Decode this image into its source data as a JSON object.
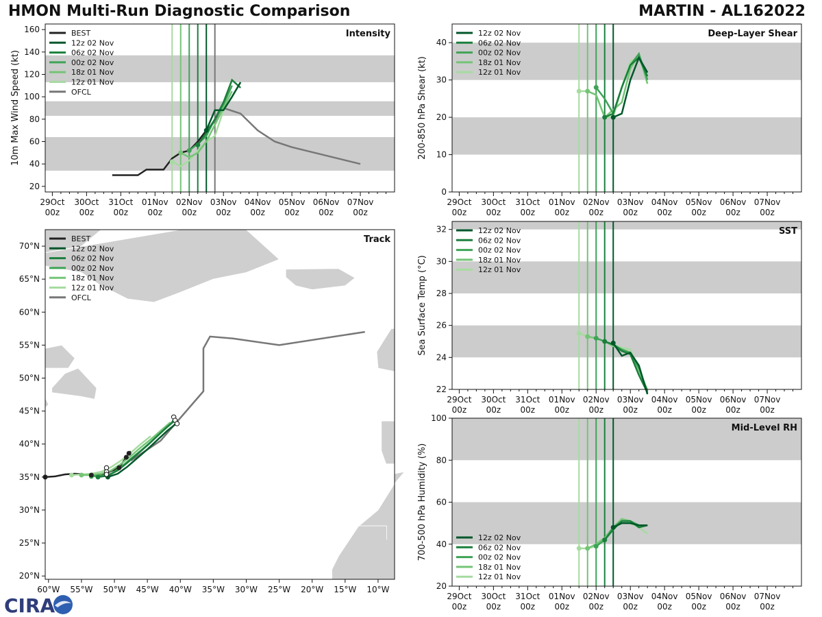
{
  "header": {
    "title": "HMON Multi-Run Diagnostic Comparison",
    "storm": "MARTIN - AL162022"
  },
  "colors": {
    "best": "#222222",
    "ofcl": "#777777",
    "band": "#cccccc",
    "runs": {
      "12z 02 Nov": "#00572a",
      "06z 02 Nov": "#1b7f3c",
      "00z 02 Nov": "#3ea356",
      "18z 01 Nov": "#74c476",
      "12z 01 Nov": "#a6dba0"
    }
  },
  "logo": {
    "text": "CIRA"
  },
  "time_axis": {
    "tick_labels": [
      [
        "29Oct",
        "00z"
      ],
      [
        "30Oct",
        "00z"
      ],
      [
        "31Oct",
        "00z"
      ],
      [
        "01Nov",
        "00z"
      ],
      [
        "02Nov",
        "00z"
      ],
      [
        "03Nov",
        "00z"
      ],
      [
        "04Nov",
        "00z"
      ],
      [
        "05Nov",
        "00z"
      ],
      [
        "06Nov",
        "00z"
      ],
      [
        "07Nov",
        "00z"
      ]
    ]
  },
  "chart_data": [
    {
      "id": "intensity",
      "type": "line",
      "title": "Intensity",
      "ylabel": "10m Max Wind Speed (kt)",
      "x_unit": "hours since 29Oct 00z",
      "xlim": [
        -5,
        240
      ],
      "ylim": [
        15,
        165
      ],
      "yticks": [
        20,
        40,
        60,
        80,
        100,
        120,
        140,
        160
      ],
      "bands": [
        [
          34,
          64
        ],
        [
          83,
          96
        ],
        [
          113,
          137
        ]
      ],
      "init_lines": [
        {
          "x": 84,
          "run": "12z 01 Nov"
        },
        {
          "x": 90,
          "run": "18z 01 Nov"
        },
        {
          "x": 96,
          "run": "00z 02 Nov"
        },
        {
          "x": 102,
          "run": "06z 02 Nov"
        },
        {
          "x": 108,
          "run": "12z 02 Nov"
        },
        {
          "x": 114,
          "run": "OFCL"
        }
      ],
      "legend": [
        "BEST",
        "12z 02 Nov",
        "06z 02 Nov",
        "00z 02 Nov",
        "18z 01 Nov",
        "12z 01 Nov",
        "OFCL"
      ],
      "series": [
        {
          "name": "BEST",
          "x": [
            42,
            60,
            66,
            78,
            84,
            90,
            96,
            102,
            108
          ],
          "y": [
            30,
            30,
            35,
            35,
            45,
            50,
            52,
            60,
            70
          ]
        },
        {
          "name": "OFCL",
          "x": [
            108,
            114,
            120,
            132,
            144,
            156,
            168,
            216
          ],
          "y": [
            70,
            78,
            90,
            85,
            70,
            60,
            55,
            40
          ]
        },
        {
          "name": "12z 01 Nov",
          "x": [
            84,
            90,
            96,
            102,
            108,
            114,
            120,
            126
          ],
          "y": [
            42,
            38,
            43,
            52,
            60,
            65,
            88,
            100
          ]
        },
        {
          "name": "18z 01 Nov",
          "x": [
            90,
            96,
            102,
            108,
            114,
            120,
            126
          ],
          "y": [
            50,
            46,
            50,
            60,
            75,
            90,
            105
          ]
        },
        {
          "name": "00z 02 Nov",
          "x": [
            96,
            102,
            108,
            114,
            120,
            126
          ],
          "y": [
            52,
            58,
            65,
            80,
            93,
            110
          ]
        },
        {
          "name": "06z 02 Nov",
          "x": [
            102,
            108,
            114,
            120,
            126,
            132
          ],
          "y": [
            57,
            68,
            80,
            95,
            115,
            108
          ]
        },
        {
          "name": "12z 02 Nov",
          "x": [
            108,
            114,
            120,
            126,
            132
          ],
          "y": [
            70,
            88,
            88,
            100,
            113
          ]
        }
      ]
    },
    {
      "id": "shear",
      "type": "line",
      "title": "Deep-Layer Shear",
      "ylabel": "200-850 hPa Shear (kt)",
      "x_unit": "hours since 29Oct 00z",
      "xlim": [
        -5,
        240
      ],
      "ylim": [
        0,
        45
      ],
      "yticks": [
        0,
        10,
        20,
        30,
        40
      ],
      "bands": [
        [
          10,
          20
        ],
        [
          30,
          40
        ]
      ],
      "init_lines": [
        {
          "x": 84,
          "run": "12z 01 Nov"
        },
        {
          "x": 90,
          "run": "18z 01 Nov"
        },
        {
          "x": 96,
          "run": "00z 02 Nov"
        },
        {
          "x": 102,
          "run": "06z 02 Nov"
        },
        {
          "x": 108,
          "run": "12z 02 Nov"
        }
      ],
      "legend": [
        "12z 02 Nov",
        "06z 02 Nov",
        "00z 02 Nov",
        "18z 01 Nov",
        "12z 01 Nov"
      ],
      "series": [
        {
          "name": "12z 01 Nov",
          "x": [
            84,
            90,
            96,
            102,
            108,
            114,
            120,
            126,
            132
          ],
          "y": [
            27,
            27,
            26,
            20,
            20,
            28,
            35,
            36,
            30
          ]
        },
        {
          "name": "18z 01 Nov",
          "x": [
            90,
            96,
            102,
            108,
            114,
            120,
            126,
            132
          ],
          "y": [
            27,
            26,
            20,
            22,
            24,
            33,
            37,
            29
          ]
        },
        {
          "name": "00z 02 Nov",
          "x": [
            96,
            102,
            108,
            114,
            120,
            126,
            132
          ],
          "y": [
            28,
            25,
            21,
            28,
            34,
            37,
            30
          ]
        },
        {
          "name": "06z 02 Nov",
          "x": [
            102,
            108,
            114,
            120,
            126,
            132
          ],
          "y": [
            20,
            21,
            28,
            34,
            36,
            31
          ]
        },
        {
          "name": "12z 02 Nov",
          "x": [
            108,
            114,
            120,
            126,
            132
          ],
          "y": [
            20,
            21,
            30,
            36,
            32
          ]
        }
      ]
    },
    {
      "id": "sst",
      "type": "line",
      "title": "SST",
      "ylabel": "Sea Surface Temp (°C)",
      "x_unit": "hours since 29Oct 00z",
      "xlim": [
        -5,
        240
      ],
      "ylim": [
        22,
        32.5
      ],
      "yticks": [
        22,
        24,
        26,
        28,
        30,
        32
      ],
      "bands": [
        [
          24,
          26
        ],
        [
          28,
          30
        ],
        [
          32,
          32.5
        ]
      ],
      "init_lines": [
        {
          "x": 84,
          "run": "12z 01 Nov"
        },
        {
          "x": 90,
          "run": "18z 01 Nov"
        },
        {
          "x": 96,
          "run": "00z 02 Nov"
        },
        {
          "x": 102,
          "run": "06z 02 Nov"
        },
        {
          "x": 108,
          "run": "12z 02 Nov"
        }
      ],
      "legend": [
        "12z 02 Nov",
        "06z 02 Nov",
        "00z 02 Nov",
        "18z 01 Nov",
        "12z 01 Nov"
      ],
      "series": [
        {
          "name": "12z 01 Nov",
          "x": [
            84,
            90,
            96,
            102,
            108,
            114,
            120,
            126,
            132
          ],
          "y": [
            25.5,
            25.3,
            25.2,
            25.0,
            24.8,
            24.6,
            24.5,
            23.0,
            22.0
          ]
        },
        {
          "name": "18z 01 Nov",
          "x": [
            90,
            96,
            102,
            108,
            114,
            120,
            126,
            132
          ],
          "y": [
            25.3,
            25.2,
            25.0,
            24.7,
            24.5,
            24.2,
            22.9,
            21.8
          ]
        },
        {
          "name": "00z 02 Nov",
          "x": [
            96,
            102,
            108,
            114,
            120,
            126,
            132
          ],
          "y": [
            25.2,
            25.0,
            24.8,
            24.5,
            24.3,
            23.3,
            21.9
          ]
        },
        {
          "name": "06z 02 Nov",
          "x": [
            102,
            108,
            114,
            120,
            126,
            132
          ],
          "y": [
            25.0,
            24.8,
            24.4,
            24.2,
            22.9,
            21.8
          ]
        },
        {
          "name": "12z 02 Nov",
          "x": [
            108,
            114,
            120,
            126,
            132
          ],
          "y": [
            24.9,
            24.1,
            24.3,
            23.5,
            21.7
          ]
        }
      ]
    },
    {
      "id": "rh",
      "type": "line",
      "title": "Mid-Level RH",
      "ylabel": "700-500 hPa Humidity (%)",
      "x_unit": "hours since 29Oct 00z",
      "xlim": [
        -5,
        240
      ],
      "ylim": [
        20,
        100
      ],
      "yticks": [
        20,
        40,
        60,
        80,
        100
      ],
      "bands": [
        [
          40,
          60
        ],
        [
          80,
          100
        ]
      ],
      "init_lines": [
        {
          "x": 84,
          "run": "12z 01 Nov"
        },
        {
          "x": 90,
          "run": "18z 01 Nov"
        },
        {
          "x": 96,
          "run": "00z 02 Nov"
        },
        {
          "x": 102,
          "run": "06z 02 Nov"
        },
        {
          "x": 108,
          "run": "12z 02 Nov"
        }
      ],
      "legend": [
        "12z 02 Nov",
        "06z 02 Nov",
        "00z 02 Nov",
        "18z 01 Nov",
        "12z 01 Nov"
      ],
      "series": [
        {
          "name": "12z 01 Nov",
          "x": [
            84,
            90,
            96,
            102,
            108,
            114,
            120,
            126,
            132
          ],
          "y": [
            38,
            38,
            39,
            42,
            47,
            52,
            50,
            48,
            45
          ]
        },
        {
          "name": "18z 01 Nov",
          "x": [
            90,
            96,
            102,
            108,
            114,
            120,
            126,
            132
          ],
          "y": [
            38,
            40,
            43,
            48,
            52,
            51,
            48,
            49
          ]
        },
        {
          "name": "00z 02 Nov",
          "x": [
            96,
            102,
            108,
            114,
            120,
            126,
            132
          ],
          "y": [
            39,
            42,
            48,
            51,
            51,
            49,
            49
          ]
        },
        {
          "name": "06z 02 Nov",
          "x": [
            102,
            108,
            114,
            120,
            126,
            132
          ],
          "y": [
            42,
            47,
            51,
            51,
            48,
            49
          ]
        },
        {
          "name": "12z 02 Nov",
          "x": [
            108,
            114,
            120,
            126,
            132
          ],
          "y": [
            48,
            50,
            50,
            49,
            49
          ]
        }
      ]
    },
    {
      "id": "track",
      "type": "scatter",
      "title": "Track",
      "x_unit": "degrees longitude (negative = W)",
      "y_unit": "degrees latitude (N)",
      "xlim": [
        -60.5,
        -7.5
      ],
      "ylim": [
        19.5,
        72.5
      ],
      "xtick_labels": [
        "60°W",
        "55°W",
        "50°W",
        "45°W",
        "40°W",
        "35°W",
        "30°W",
        "25°W",
        "20°W",
        "15°W",
        "10°W"
      ],
      "xtick_values": [
        -60,
        -55,
        -50,
        -45,
        -40,
        -35,
        -30,
        -25,
        -20,
        -15,
        -10
      ],
      "ytick_labels": [
        "20°N",
        "25°N",
        "30°N",
        "35°N",
        "40°N",
        "45°N",
        "50°N",
        "55°N",
        "60°N",
        "65°N",
        "70°N"
      ],
      "ytick_values": [
        20,
        25,
        30,
        35,
        40,
        45,
        50,
        55,
        60,
        65,
        70
      ],
      "legend": [
        "BEST",
        "12z 02 Nov",
        "06z 02 Nov",
        "00z 02 Nov",
        "18z 01 Nov",
        "12z 01 Nov",
        "OFCL"
      ],
      "series": [
        {
          "name": "BEST",
          "lon": [
            -60.5,
            -59,
            -57.5,
            -56,
            -54.5,
            -53.5,
            -52.5,
            -51.5,
            -50.5,
            -49.3,
            -48.2,
            -47.8,
            -47.5
          ],
          "lat": [
            35.0,
            35.1,
            35.4,
            35.5,
            35.4,
            35.3,
            35.3,
            35.5,
            35.9,
            36.4,
            38.0,
            38.6,
            38.9
          ]
        },
        {
          "name": "OFCL",
          "lon": [
            -47.5,
            -43,
            -36.5,
            -36.5,
            -35.5,
            -32,
            -25,
            -12
          ],
          "lat": [
            37.5,
            40.5,
            48.0,
            54.5,
            56.3,
            56.0,
            55.0,
            57.0
          ]
        },
        {
          "name": "12z 01 Nov",
          "lon": [
            -56.5,
            -55,
            -53.5,
            -52,
            -50.5,
            -49,
            -47.5,
            -46,
            -44.5
          ],
          "lat": [
            35.3,
            35.4,
            35.5,
            35.8,
            36.5,
            37.5,
            38.7,
            40.0,
            41.2
          ]
        },
        {
          "name": "18z 01 Nov",
          "lon": [
            -55,
            -53.5,
            -52,
            -50.5,
            -49,
            -47.5,
            -46,
            -44.5,
            -43,
            -41.5
          ],
          "lat": [
            35.3,
            35.3,
            35.5,
            36.0,
            37.0,
            38.2,
            39.5,
            40.7,
            42.0,
            43.3
          ]
        },
        {
          "name": "00z 02 Nov",
          "lon": [
            -53.5,
            -52,
            -50.5,
            -49,
            -47.5,
            -46,
            -44.5,
            -43,
            -41.5,
            -40.8
          ],
          "lat": [
            35.1,
            35.2,
            35.5,
            36.5,
            37.8,
            39.0,
            40.3,
            41.7,
            43.0,
            44.0
          ]
        },
        {
          "name": "06z 02 Nov",
          "lon": [
            -52.5,
            -51,
            -49.5,
            -48,
            -46.5,
            -45,
            -43.5,
            -42,
            -40.8
          ],
          "lat": [
            35.0,
            35.2,
            36.0,
            37.2,
            38.5,
            39.8,
            41.2,
            42.6,
            43.6
          ]
        },
        {
          "name": "12z 02 Nov",
          "lon": [
            -51,
            -49.5,
            -48,
            -46.5,
            -45,
            -43.5,
            -42,
            -40.5
          ],
          "lat": [
            35.0,
            35.5,
            36.6,
            37.9,
            39.2,
            40.6,
            42.0,
            43.2
          ]
        }
      ],
      "open_markers": [
        {
          "lon": -51.2,
          "lat": 36.4
        },
        {
          "lon": -51.2,
          "lat": 35.8
        },
        {
          "lon": -51.2,
          "lat": 35.4
        },
        {
          "lon": -41.0,
          "lat": 44.1
        },
        {
          "lon": -40.8,
          "lat": 43.6
        },
        {
          "lon": -40.5,
          "lat": 43.1
        }
      ]
    }
  ]
}
